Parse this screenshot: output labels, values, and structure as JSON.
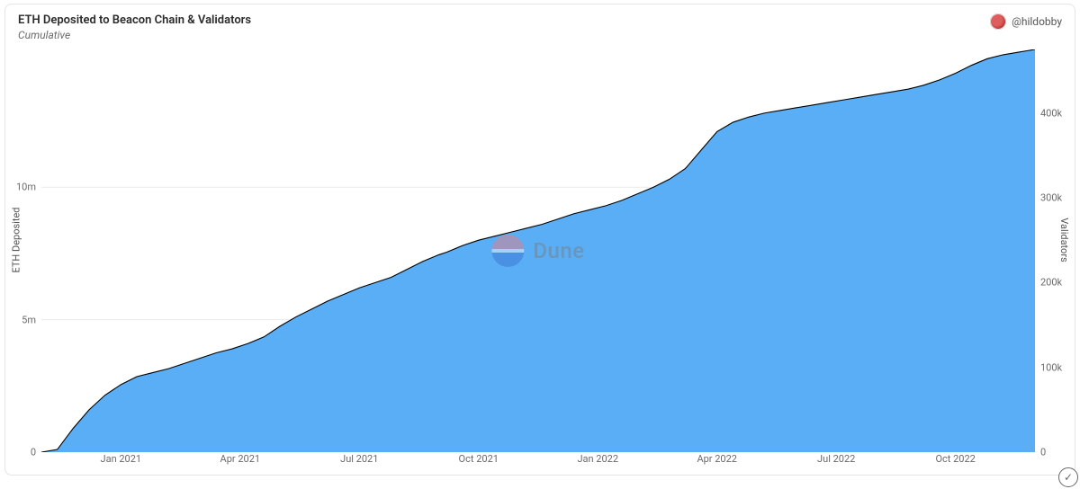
{
  "header": {
    "title": "ETH Deposited to Beacon Chain & Validators",
    "subtitle": "Cumulative",
    "author_handle": "@hildobby"
  },
  "watermark": {
    "text": "Dune"
  },
  "chart": {
    "type": "area",
    "background_color": "#ffffff",
    "card_border_color": "#e5e5e5",
    "fill_color": "#5aaef5",
    "line_color": "#000000",
    "line_width": 1.1,
    "grid_color": "#eaeaea",
    "y_left": {
      "title": "ETH Deposited",
      "min": 0,
      "max": 15200000,
      "ticks": [
        {
          "value": 0,
          "label": "0"
        },
        {
          "value": 5000000,
          "label": "5m"
        },
        {
          "value": 10000000,
          "label": "10m"
        }
      ],
      "title_fontsize": 11,
      "label_fontsize": 11,
      "label_color": "#6a6a6a"
    },
    "y_right": {
      "title": "Validators",
      "min": 0,
      "max": 475000,
      "ticks": [
        {
          "value": 0,
          "label": "0"
        },
        {
          "value": 100000,
          "label": "100k"
        },
        {
          "value": 200000,
          "label": "200k"
        },
        {
          "value": 300000,
          "label": "300k"
        },
        {
          "value": 400000,
          "label": "400k"
        }
      ],
      "title_fontsize": 11,
      "label_fontsize": 11,
      "label_color": "#6a6a6a"
    },
    "x": {
      "min": 0,
      "max": 25,
      "ticks": [
        {
          "value": 2,
          "label": "Jan 2021"
        },
        {
          "value": 5,
          "label": "Apr 2021"
        },
        {
          "value": 8,
          "label": "Jul 2021"
        },
        {
          "value": 11,
          "label": "Oct 2021"
        },
        {
          "value": 14,
          "label": "Jan 2022"
        },
        {
          "value": 17,
          "label": "Apr 2022"
        },
        {
          "value": 20,
          "label": "Jul 2022"
        },
        {
          "value": 23,
          "label": "Oct 2022"
        }
      ],
      "label_fontsize": 11,
      "label_color": "#6a6a6a"
    },
    "series": {
      "points": [
        {
          "x": 0.0,
          "y": 0
        },
        {
          "x": 0.4,
          "y": 100000
        },
        {
          "x": 0.8,
          "y": 900000
        },
        {
          "x": 1.2,
          "y": 1600000
        },
        {
          "x": 1.6,
          "y": 2150000
        },
        {
          "x": 2.0,
          "y": 2550000
        },
        {
          "x": 2.4,
          "y": 2850000
        },
        {
          "x": 2.8,
          "y": 3000000
        },
        {
          "x": 3.2,
          "y": 3150000
        },
        {
          "x": 3.6,
          "y": 3350000
        },
        {
          "x": 4.0,
          "y": 3550000
        },
        {
          "x": 4.4,
          "y": 3750000
        },
        {
          "x": 4.8,
          "y": 3900000
        },
        {
          "x": 5.2,
          "y": 4100000
        },
        {
          "x": 5.6,
          "y": 4350000
        },
        {
          "x": 6.0,
          "y": 4750000
        },
        {
          "x": 6.4,
          "y": 5100000
        },
        {
          "x": 6.8,
          "y": 5400000
        },
        {
          "x": 7.2,
          "y": 5700000
        },
        {
          "x": 7.6,
          "y": 5950000
        },
        {
          "x": 8.0,
          "y": 6200000
        },
        {
          "x": 8.4,
          "y": 6400000
        },
        {
          "x": 8.8,
          "y": 6600000
        },
        {
          "x": 9.2,
          "y": 6900000
        },
        {
          "x": 9.6,
          "y": 7200000
        },
        {
          "x": 10.0,
          "y": 7450000
        },
        {
          "x": 10.2,
          "y": 7550000
        },
        {
          "x": 10.6,
          "y": 7800000
        },
        {
          "x": 11.0,
          "y": 8000000
        },
        {
          "x": 11.4,
          "y": 8150000
        },
        {
          "x": 11.8,
          "y": 8300000
        },
        {
          "x": 12.2,
          "y": 8450000
        },
        {
          "x": 12.6,
          "y": 8600000
        },
        {
          "x": 13.0,
          "y": 8800000
        },
        {
          "x": 13.4,
          "y": 9000000
        },
        {
          "x": 13.8,
          "y": 9150000
        },
        {
          "x": 14.2,
          "y": 9300000
        },
        {
          "x": 14.6,
          "y": 9500000
        },
        {
          "x": 15.0,
          "y": 9750000
        },
        {
          "x": 15.4,
          "y": 10000000
        },
        {
          "x": 15.8,
          "y": 10300000
        },
        {
          "x": 16.2,
          "y": 10700000
        },
        {
          "x": 16.6,
          "y": 11400000
        },
        {
          "x": 17.0,
          "y": 12100000
        },
        {
          "x": 17.4,
          "y": 12450000
        },
        {
          "x": 17.8,
          "y": 12650000
        },
        {
          "x": 18.2,
          "y": 12800000
        },
        {
          "x": 18.6,
          "y": 12900000
        },
        {
          "x": 19.0,
          "y": 13000000
        },
        {
          "x": 19.4,
          "y": 13100000
        },
        {
          "x": 19.8,
          "y": 13200000
        },
        {
          "x": 20.2,
          "y": 13300000
        },
        {
          "x": 20.6,
          "y": 13400000
        },
        {
          "x": 21.0,
          "y": 13500000
        },
        {
          "x": 21.4,
          "y": 13600000
        },
        {
          "x": 21.8,
          "y": 13700000
        },
        {
          "x": 22.2,
          "y": 13850000
        },
        {
          "x": 22.6,
          "y": 14050000
        },
        {
          "x": 23.0,
          "y": 14300000
        },
        {
          "x": 23.4,
          "y": 14600000
        },
        {
          "x": 23.8,
          "y": 14850000
        },
        {
          "x": 24.2,
          "y": 15000000
        },
        {
          "x": 24.6,
          "y": 15100000
        },
        {
          "x": 25.0,
          "y": 15200000
        }
      ]
    }
  }
}
